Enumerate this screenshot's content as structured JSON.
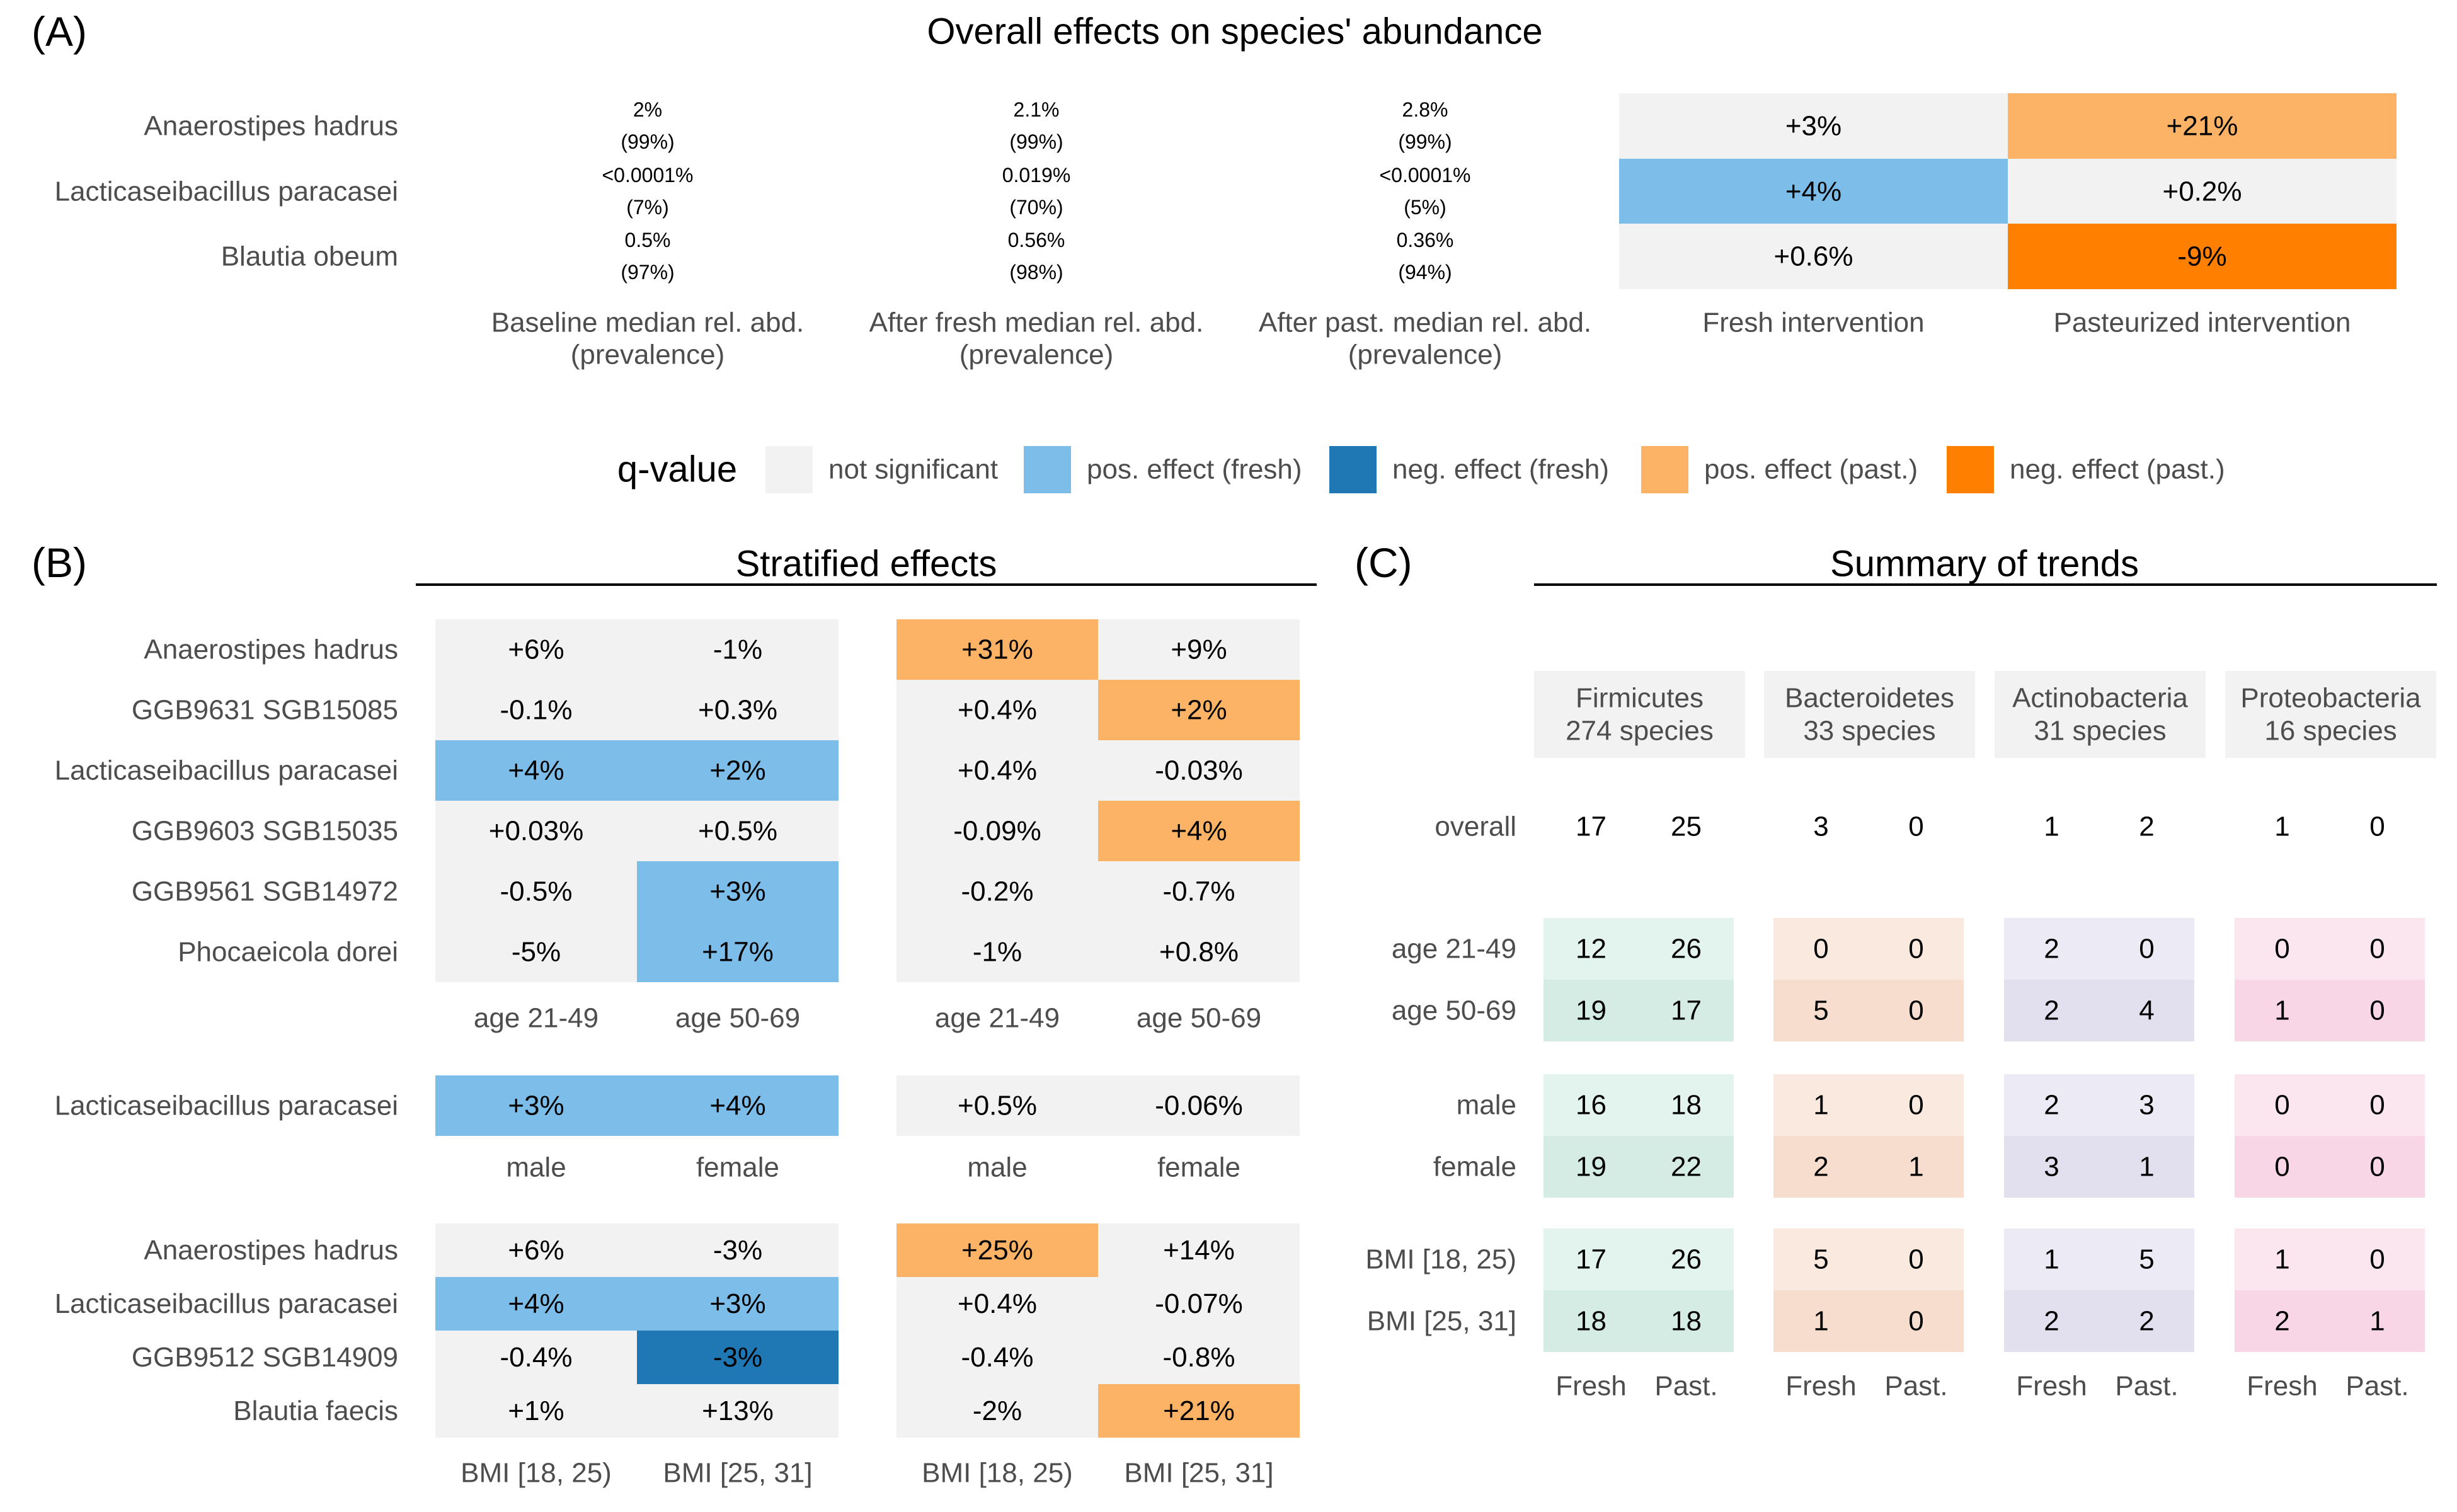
{
  "colors": {
    "ns": "#f2f2f2",
    "pos_fresh": "#7dbde9",
    "neg_fresh": "#1f78b4",
    "pos_past": "#fdb366",
    "neg_past": "#ff7f00",
    "firmicutes": "#cce9de",
    "bacteroidetes": "#f5d7c4",
    "actinobacteria": "#ddd9ec",
    "proteobacteria": "#f8cfe1"
  },
  "chart_data": [
    {
      "type": "table",
      "panel": "(A)",
      "title": "Overall effects on species' abundance",
      "rows": [
        "Anaerostipes hadrus",
        "Lacticaseibacillus paracasei",
        "Blautia obeum"
      ],
      "columns": [
        "Baseline median rel. abd. (prevalence)",
        "After fresh median rel. abd. (prevalence)",
        "After past. median rel. abd. (prevalence)",
        "Fresh intervention",
        "Pasteurized intervention"
      ],
      "text_column_headers": [
        {
          "line1": "Baseline median rel. abd.",
          "line2": "(prevalence)"
        },
        {
          "line1": "After fresh median rel. abd.",
          "line2": "(prevalence)"
        },
        {
          "line1": "After past. median rel. abd.",
          "line2": "(prevalence)"
        }
      ],
      "effect_column_headers": [
        "Fresh intervention",
        "Pasteurized intervention"
      ],
      "text_cells": [
        [
          {
            "value": "2%",
            "prevalence": "(99%)"
          },
          {
            "value": "2.1%",
            "prevalence": "(99%)"
          },
          {
            "value": "2.8%",
            "prevalence": "(99%)"
          }
        ],
        [
          {
            "value": "<0.0001%",
            "prevalence": "(7%)"
          },
          {
            "value": "0.019%",
            "prevalence": "(70%)"
          },
          {
            "value": "<0.0001%",
            "prevalence": "(5%)"
          }
        ],
        [
          {
            "value": "0.5%",
            "prevalence": "(97%)"
          },
          {
            "value": "0.56%",
            "prevalence": "(98%)"
          },
          {
            "value": "0.36%",
            "prevalence": "(94%)"
          }
        ]
      ],
      "effects": [
        [
          {
            "text": "+3%",
            "status": "ns"
          },
          {
            "text": "+21%",
            "status": "pos_past"
          }
        ],
        [
          {
            "text": "+4%",
            "status": "pos_fresh"
          },
          {
            "text": "+0.2%",
            "status": "ns"
          }
        ],
        [
          {
            "text": "+0.6%",
            "status": "ns"
          },
          {
            "text": "-9%",
            "status": "neg_past"
          }
        ]
      ]
    },
    {
      "type": "heatmap",
      "panel": "(B)",
      "title": "Stratified effects",
      "groups": [
        {
          "rows": [
            "Anaerostipes hadrus",
            "GGB9631 SGB15085",
            "Lacticaseibacillus paracasei",
            "GGB9603 SGB15035",
            "GGB9561 SGB14972",
            "Phocaeicola dorei"
          ],
          "strata": [
            "age 21-49",
            "age 50-69"
          ],
          "fresh": [
            [
              {
                "text": "+6%",
                "status": "ns"
              },
              {
                "text": "-1%",
                "status": "ns"
              }
            ],
            [
              {
                "text": "-0.1%",
                "status": "ns"
              },
              {
                "text": "+0.3%",
                "status": "ns"
              }
            ],
            [
              {
                "text": "+4%",
                "status": "pos_fresh"
              },
              {
                "text": "+2%",
                "status": "pos_fresh"
              }
            ],
            [
              {
                "text": "+0.03%",
                "status": "ns"
              },
              {
                "text": "+0.5%",
                "status": "ns"
              }
            ],
            [
              {
                "text": "-0.5%",
                "status": "ns"
              },
              {
                "text": "+3%",
                "status": "pos_fresh"
              }
            ],
            [
              {
                "text": "-5%",
                "status": "ns"
              },
              {
                "text": "+17%",
                "status": "pos_fresh"
              }
            ]
          ],
          "past": [
            [
              {
                "text": "+31%",
                "status": "pos_past"
              },
              {
                "text": "+9%",
                "status": "ns"
              }
            ],
            [
              {
                "text": "+0.4%",
                "status": "ns"
              },
              {
                "text": "+2%",
                "status": "pos_past"
              }
            ],
            [
              {
                "text": "+0.4%",
                "status": "ns"
              },
              {
                "text": "-0.03%",
                "status": "ns"
              }
            ],
            [
              {
                "text": "-0.09%",
                "status": "ns"
              },
              {
                "text": "+4%",
                "status": "pos_past"
              }
            ],
            [
              {
                "text": "-0.2%",
                "status": "ns"
              },
              {
                "text": "-0.7%",
                "status": "ns"
              }
            ],
            [
              {
                "text": "-1%",
                "status": "ns"
              },
              {
                "text": "+0.8%",
                "status": "ns"
              }
            ]
          ]
        },
        {
          "rows": [
            "Lacticaseibacillus paracasei"
          ],
          "strata": [
            "male",
            "female"
          ],
          "fresh": [
            [
              {
                "text": "+3%",
                "status": "pos_fresh"
              },
              {
                "text": "+4%",
                "status": "pos_fresh"
              }
            ]
          ],
          "past": [
            [
              {
                "text": "+0.5%",
                "status": "ns"
              },
              {
                "text": "-0.06%",
                "status": "ns"
              }
            ]
          ]
        },
        {
          "rows": [
            "Anaerostipes hadrus",
            "Lacticaseibacillus paracasei",
            "GGB9512 SGB14909",
            "Blautia faecis"
          ],
          "strata": [
            "BMI [18, 25)",
            "BMI [25, 31]"
          ],
          "fresh": [
            [
              {
                "text": "+6%",
                "status": "ns"
              },
              {
                "text": "-3%",
                "status": "ns"
              }
            ],
            [
              {
                "text": "+4%",
                "status": "pos_fresh"
              },
              {
                "text": "+3%",
                "status": "pos_fresh"
              }
            ],
            [
              {
                "text": "-0.4%",
                "status": "ns"
              },
              {
                "text": "-3%",
                "status": "neg_fresh"
              }
            ],
            [
              {
                "text": "+1%",
                "status": "ns"
              },
              {
                "text": "+13%",
                "status": "ns"
              }
            ]
          ],
          "past": [
            [
              {
                "text": "+25%",
                "status": "pos_past"
              },
              {
                "text": "+14%",
                "status": "ns"
              }
            ],
            [
              {
                "text": "+0.4%",
                "status": "ns"
              },
              {
                "text": "-0.07%",
                "status": "ns"
              }
            ],
            [
              {
                "text": "-0.4%",
                "status": "ns"
              },
              {
                "text": "-0.8%",
                "status": "ns"
              }
            ],
            [
              {
                "text": "-2%",
                "status": "ns"
              },
              {
                "text": "+21%",
                "status": "pos_past"
              }
            ]
          ]
        }
      ]
    },
    {
      "type": "table",
      "panel": "(C)",
      "title": "Summary of trends",
      "phyla": [
        {
          "key": "firmicutes",
          "name": "Firmicutes",
          "species": "274 species"
        },
        {
          "key": "bacteroidetes",
          "name": "Bacteroidetes",
          "species": "33 species"
        },
        {
          "key": "actinobacteria",
          "name": "Actinobacteria",
          "species": "31 species"
        },
        {
          "key": "proteobacteria",
          "name": "Proteobacteria",
          "species": "16 species"
        }
      ],
      "columns": [
        "Fresh",
        "Past."
      ],
      "overall": {
        "label": "overall",
        "values": [
          [
            17,
            25
          ],
          [
            3,
            0
          ],
          [
            1,
            2
          ],
          [
            1,
            0
          ]
        ]
      },
      "groups": [
        {
          "rows": [
            {
              "label": "age 21-49",
              "values": [
                [
                  12,
                  26
                ],
                [
                  0,
                  0
                ],
                [
                  2,
                  0
                ],
                [
                  0,
                  0
                ]
              ],
              "bold": [
                [
                  false,
                  true
                ],
                [
                  false,
                  false
                ],
                [
                  false,
                  false
                ],
                [
                  false,
                  false
                ]
              ]
            },
            {
              "label": "age 50-69",
              "values": [
                [
                  19,
                  17
                ],
                [
                  5,
                  0
                ],
                [
                  2,
                  4
                ],
                [
                  1,
                  0
                ]
              ],
              "bold": [
                [
                  true,
                  false
                ],
                [
                  true,
                  false
                ],
                [
                  false,
                  true
                ],
                [
                  true,
                  false
                ]
              ]
            }
          ]
        },
        {
          "rows": [
            {
              "label": "male",
              "values": [
                [
                  16,
                  18
                ],
                [
                  1,
                  0
                ],
                [
                  2,
                  3
                ],
                [
                  0,
                  0
                ]
              ],
              "bold": [
                [
                  false,
                  false
                ],
                [
                  false,
                  false
                ],
                [
                  false,
                  true
                ],
                [
                  false,
                  false
                ]
              ]
            },
            {
              "label": "female",
              "values": [
                [
                  19,
                  22
                ],
                [
                  2,
                  1
                ],
                [
                  3,
                  1
                ],
                [
                  0,
                  0
                ]
              ],
              "bold": [
                [
                  true,
                  true
                ],
                [
                  true,
                  true
                ],
                [
                  true,
                  false
                ],
                [
                  false,
                  false
                ]
              ]
            }
          ]
        },
        {
          "rows": [
            {
              "label": "BMI [18, 25)",
              "values": [
                [
                  17,
                  26
                ],
                [
                  5,
                  0
                ],
                [
                  1,
                  5
                ],
                [
                  1,
                  0
                ]
              ],
              "bold": [
                [
                  false,
                  true
                ],
                [
                  true,
                  false
                ],
                [
                  false,
                  true
                ],
                [
                  false,
                  false
                ]
              ]
            },
            {
              "label": "BMI [25, 31]",
              "values": [
                [
                  18,
                  18
                ],
                [
                  1,
                  0
                ],
                [
                  2,
                  2
                ],
                [
                  2,
                  1
                ]
              ],
              "bold": [
                [
                  true,
                  false
                ],
                [
                  false,
                  false
                ],
                [
                  true,
                  false
                ],
                [
                  true,
                  true
                ]
              ]
            }
          ]
        }
      ]
    }
  ],
  "legend": {
    "title": "q-value",
    "items": [
      {
        "key": "ns",
        "label": "not significant"
      },
      {
        "key": "pos_fresh",
        "label": "pos. effect (fresh)"
      },
      {
        "key": "neg_fresh",
        "label": "neg. effect (fresh)"
      },
      {
        "key": "pos_past",
        "label": "pos. effect (past.)"
      },
      {
        "key": "neg_past",
        "label": "neg. effect (past.)"
      }
    ]
  }
}
